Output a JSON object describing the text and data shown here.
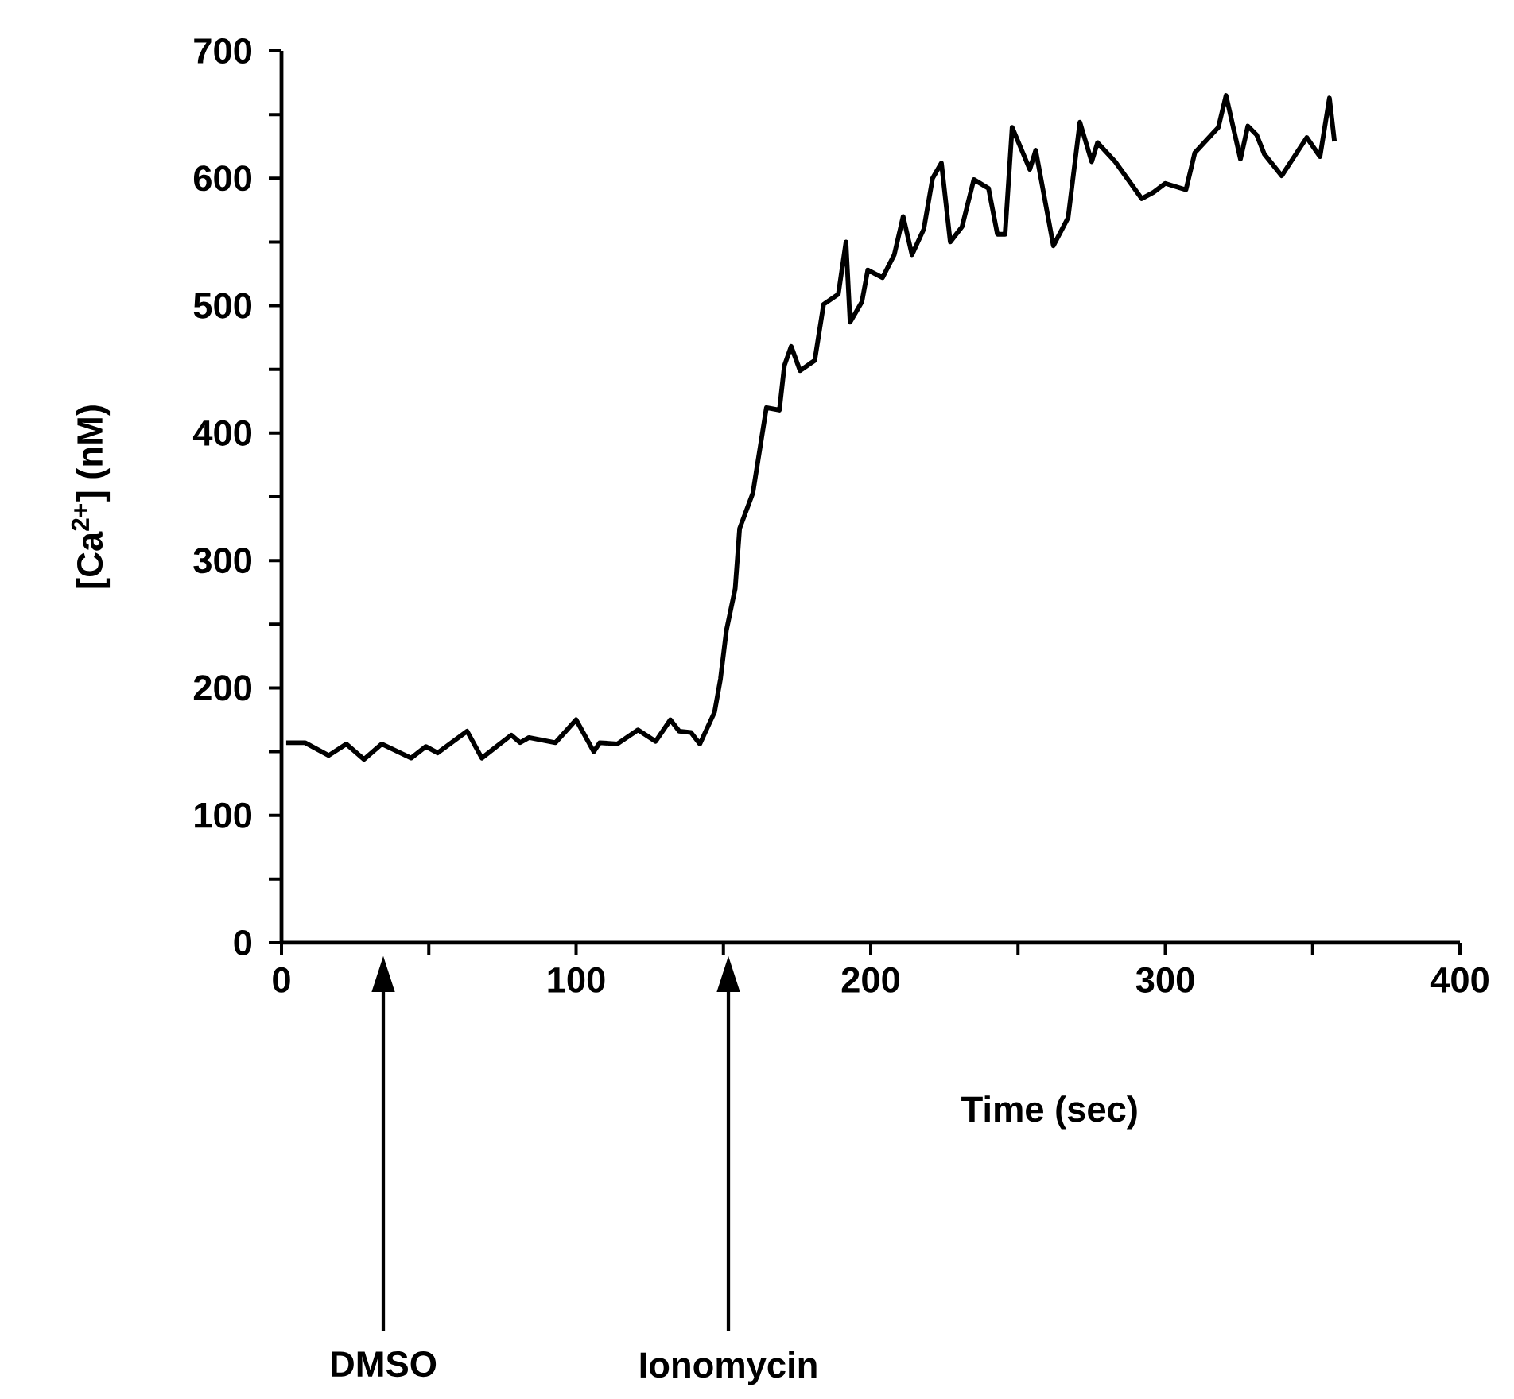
{
  "chart_data": {
    "type": "line",
    "xlabel": "Time (sec)",
    "ylabel": "[Ca$^{2+}$] (nM)",
    "xlim": [
      0,
      400
    ],
    "ylim": [
      0,
      700
    ],
    "xticks": [
      0,
      {
        "value": 50,
        "label": null
      },
      100,
      {
        "value": 150,
        "label": null
      },
      200,
      {
        "value": 250,
        "label": null
      },
      300,
      {
        "value": 350,
        "label": null
      },
      400
    ],
    "yticks": [
      0,
      {
        "value": 50,
        "label": null
      },
      100,
      {
        "value": 150,
        "label": null
      },
      200,
      {
        "value": 250,
        "label": null
      },
      300,
      {
        "value": 350,
        "label": null
      },
      400,
      {
        "value": 450,
        "label": null
      },
      500,
      {
        "value": 550,
        "label": null
      },
      600,
      {
        "value": 650,
        "label": null
      },
      700
    ],
    "color": "#000000",
    "x": [
      1.6,
      8,
      16,
      22,
      28,
      34,
      44,
      49,
      53,
      63,
      68,
      73,
      78,
      81,
      84,
      93,
      100,
      106,
      108,
      114,
      121,
      127,
      132,
      135,
      139,
      142,
      147,
      149,
      151,
      154,
      155.5,
      160,
      164.6,
      169,
      170.7,
      173,
      176,
      181,
      184,
      189,
      191.6,
      193,
      197,
      199,
      204,
      208,
      211,
      214,
      218,
      221,
      224,
      227,
      231,
      235,
      240,
      243,
      245.6,
      248,
      254,
      256,
      262,
      267,
      271,
      275,
      277,
      283,
      292,
      296,
      300,
      307,
      310,
      318,
      320.6,
      325.5,
      328,
      331,
      333.6,
      339.5,
      348,
      352.5,
      355.7,
      357.4
    ],
    "values": [
      157,
      157,
      147,
      156,
      144,
      156,
      145,
      154,
      149,
      166,
      145,
      154,
      163,
      157,
      161,
      157,
      175,
      150,
      157,
      156,
      167,
      158,
      175,
      166,
      165,
      156,
      181,
      207,
      245,
      278,
      325,
      353,
      420,
      418,
      453,
      468,
      449,
      457,
      501,
      509,
      550,
      487,
      503,
      528,
      522,
      540,
      570,
      540,
      560,
      600,
      612,
      550,
      562,
      599,
      592,
      556,
      556,
      640,
      607,
      622,
      547,
      569,
      644,
      613,
      628,
      613,
      584,
      589,
      596,
      591,
      620,
      640,
      665,
      615,
      641,
      634,
      619,
      602,
      632,
      617,
      663,
      629
    ],
    "annotations": [
      "DMSO",
      "Ionomycin"
    ]
  }
}
